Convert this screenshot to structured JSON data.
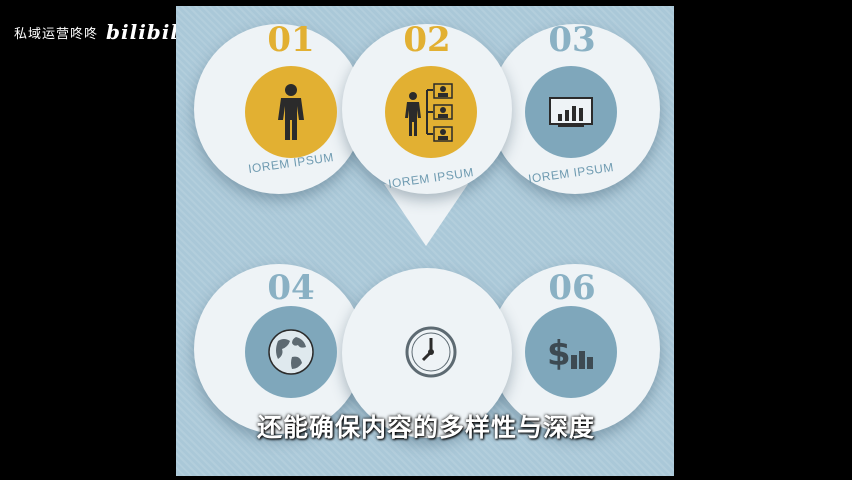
{
  "watermark": {
    "channel": "私域运营咚咚",
    "logo": "bilibili"
  },
  "infographic": {
    "items": [
      {
        "number": "01",
        "label": "IOREM IPSUM",
        "icon": "person-icon",
        "accent": "#e2b032"
      },
      {
        "number": "02",
        "label": "IOREM IPSUM",
        "icon": "org-chart-icon",
        "accent": "#e2b032"
      },
      {
        "number": "03",
        "label": "IOREM IPSUM",
        "icon": "presentation-icon",
        "accent": "#7fa7bb"
      },
      {
        "number": "04",
        "label": "",
        "icon": "globe-icon",
        "accent": "#7fa7bb"
      },
      {
        "number": "",
        "label": "",
        "icon": "clock-icon",
        "accent": "#eef3f6"
      },
      {
        "number": "06",
        "label": "",
        "icon": "dollar-icon",
        "accent": "#7fa7bb"
      }
    ]
  },
  "subtitle": {
    "text": "还能确保内容的多样性与深度"
  },
  "colors": {
    "panel": "#aac8d8",
    "circle": "#eef3f6",
    "gold": "#e2b032",
    "blue": "#7fa7bb"
  }
}
